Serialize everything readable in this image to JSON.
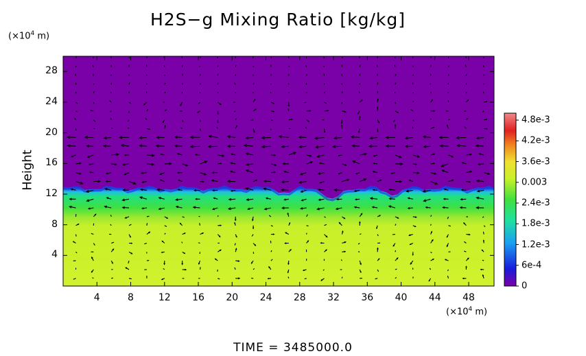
{
  "chart_data": {
    "type": "heatmap",
    "title": "H2S−g Mixing Ratio [kg/kg]",
    "ylabel": "Height",
    "y_unit_label": "(×10",
    "x_unit_label": "(×10",
    "unit_exponent": "4",
    "unit_suffix": " m)",
    "xlim": [
      0,
      51
    ],
    "ylim": [
      0,
      30
    ],
    "x_ticks": [
      4,
      8,
      12,
      16,
      20,
      24,
      28,
      32,
      36,
      40,
      44,
      48
    ],
    "y_ticks": [
      4,
      8,
      12,
      16,
      20,
      24,
      28
    ],
    "colorbar": {
      "min": 0,
      "max": 0.005,
      "tick_labels": [
        "0",
        "6e-4",
        "1.2e-3",
        "1.8e-3",
        "2.4e-3",
        "0.003",
        "3.6e-3",
        "4.2e-3",
        "4.8e-3"
      ],
      "tick_values": [
        0,
        0.0006,
        0.0012,
        0.0018,
        0.0024,
        0.003,
        0.0036,
        0.0042,
        0.0048
      ],
      "colors": [
        "#7a00a8",
        "#1a1adc",
        "#1aa0f0",
        "#20e0a0",
        "#40e040",
        "#c8f02a",
        "#f0e030",
        "#f08020",
        "#e02020",
        "#f08a8a"
      ]
    },
    "layers": [
      {
        "name": "upper",
        "y_range": [
          13,
          30
        ],
        "value": 0.0
      },
      {
        "name": "interface",
        "y_range": [
          12,
          13
        ],
        "value": 0.0012
      },
      {
        "name": "green-band",
        "y_range": [
          10,
          12
        ],
        "value": 0.0024
      },
      {
        "name": "transition",
        "y_range": [
          8,
          10
        ],
        "value": 0.0032
      },
      {
        "name": "lower",
        "y_range": [
          0,
          8
        ],
        "value": 0.0035
      }
    ],
    "vectors": true
  },
  "footer": {
    "time_label": "TIME = 3485000.0"
  }
}
